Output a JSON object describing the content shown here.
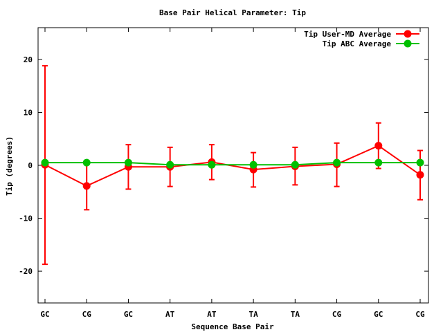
{
  "chart_data": {
    "type": "line",
    "title": "Base Pair Helical Parameter: Tip",
    "xlabel": "Sequence Base Pair",
    "ylabel": "Tip (degrees)",
    "categories": [
      "GC",
      "CG",
      "GC",
      "AT",
      "AT",
      "TA",
      "TA",
      "CG",
      "GC",
      "CG"
    ],
    "ylim": [
      -26,
      26
    ],
    "yticks": [
      -20,
      -10,
      0,
      10,
      20
    ],
    "ytick_labels": [
      "-20",
      "-10",
      "0",
      "10",
      "20"
    ],
    "legend_position": "top-right",
    "grid": false,
    "series": [
      {
        "name": "Tip User-MD Average",
        "color": "#ff0000",
        "values": [
          0.1,
          -3.9,
          -0.3,
          -0.3,
          0.6,
          -0.8,
          -0.2,
          0.2,
          3.7,
          -1.8
        ],
        "error_low": [
          -18.7,
          -8.4,
          -4.5,
          -4.0,
          -2.7,
          -4.1,
          -3.7,
          -4.0,
          -0.6,
          -6.5
        ],
        "error_high": [
          18.8,
          0.6,
          3.9,
          3.4,
          3.9,
          2.4,
          3.4,
          4.2,
          8.0,
          2.8
        ]
      },
      {
        "name": "Tip ABC Average",
        "color": "#00c000",
        "values": [
          0.5,
          0.5,
          0.5,
          0.1,
          0.1,
          0.1,
          0.1,
          0.5,
          0.5,
          0.5
        ]
      }
    ]
  }
}
